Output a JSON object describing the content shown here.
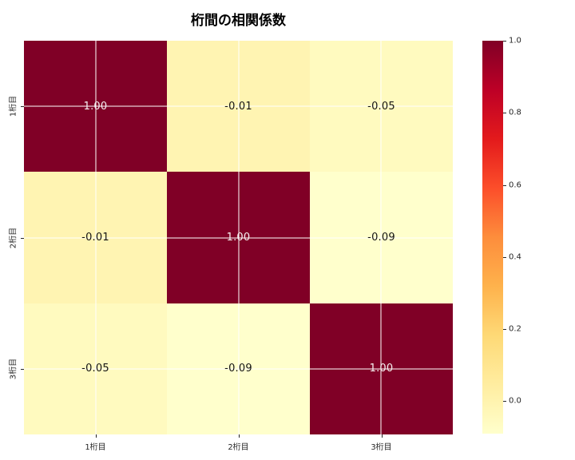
{
  "title": "桁間の相関係数",
  "chart_data": {
    "type": "heatmap",
    "title": "桁間の相関係数",
    "x_categories": [
      "1桁目",
      "2桁目",
      "3桁目"
    ],
    "y_categories": [
      "1桁目",
      "2桁目",
      "3桁目"
    ],
    "matrix": [
      [
        1.0,
        -0.01,
        -0.05
      ],
      [
        -0.01,
        1.0,
        -0.09
      ],
      [
        -0.05,
        -0.09,
        1.0
      ]
    ],
    "cell_labels": [
      [
        "1.00",
        "-0.01",
        "-0.05"
      ],
      [
        "-0.01",
        "1.00",
        "-0.09"
      ],
      [
        "-0.05",
        "-0.09",
        "1.00"
      ]
    ],
    "cell_colors": [
      [
        "#800026",
        "#FFF4B2",
        "#FFFABF"
      ],
      [
        "#FFF4B2",
        "#800026",
        "#FFFFCC"
      ],
      [
        "#FFFABF",
        "#FFFFCC",
        "#800026"
      ]
    ],
    "colormap": "YlOrRd",
    "vmin": -0.09,
    "vmax": 1.0,
    "colorbar_ticks": [
      {
        "value": 1.0,
        "label": "1.0"
      },
      {
        "value": 0.8,
        "label": "0.8"
      },
      {
        "value": 0.6,
        "label": "0.6"
      },
      {
        "value": 0.4,
        "label": "0.4"
      },
      {
        "value": 0.2,
        "label": "0.2"
      },
      {
        "value": 0.0,
        "label": "0.0"
      }
    ],
    "grid": true,
    "legend_position": "right-colorbar"
  },
  "colors": {
    "background": "#ffffff",
    "cell_max": "#800026",
    "cell_min": "#FFFFCC",
    "annot_light": "#f5f0f0",
    "annot_dark": "#141414",
    "gridline": "#ffffff",
    "tick": "#262626",
    "tick_label": "#262626",
    "title_color": "#000000",
    "colormap_stops": [
      "#ffffcc",
      "#ffeda0",
      "#fed976",
      "#feb24c",
      "#fd8d3c",
      "#fc4e2a",
      "#e31a1c",
      "#bd0026",
      "#800026"
    ]
  }
}
